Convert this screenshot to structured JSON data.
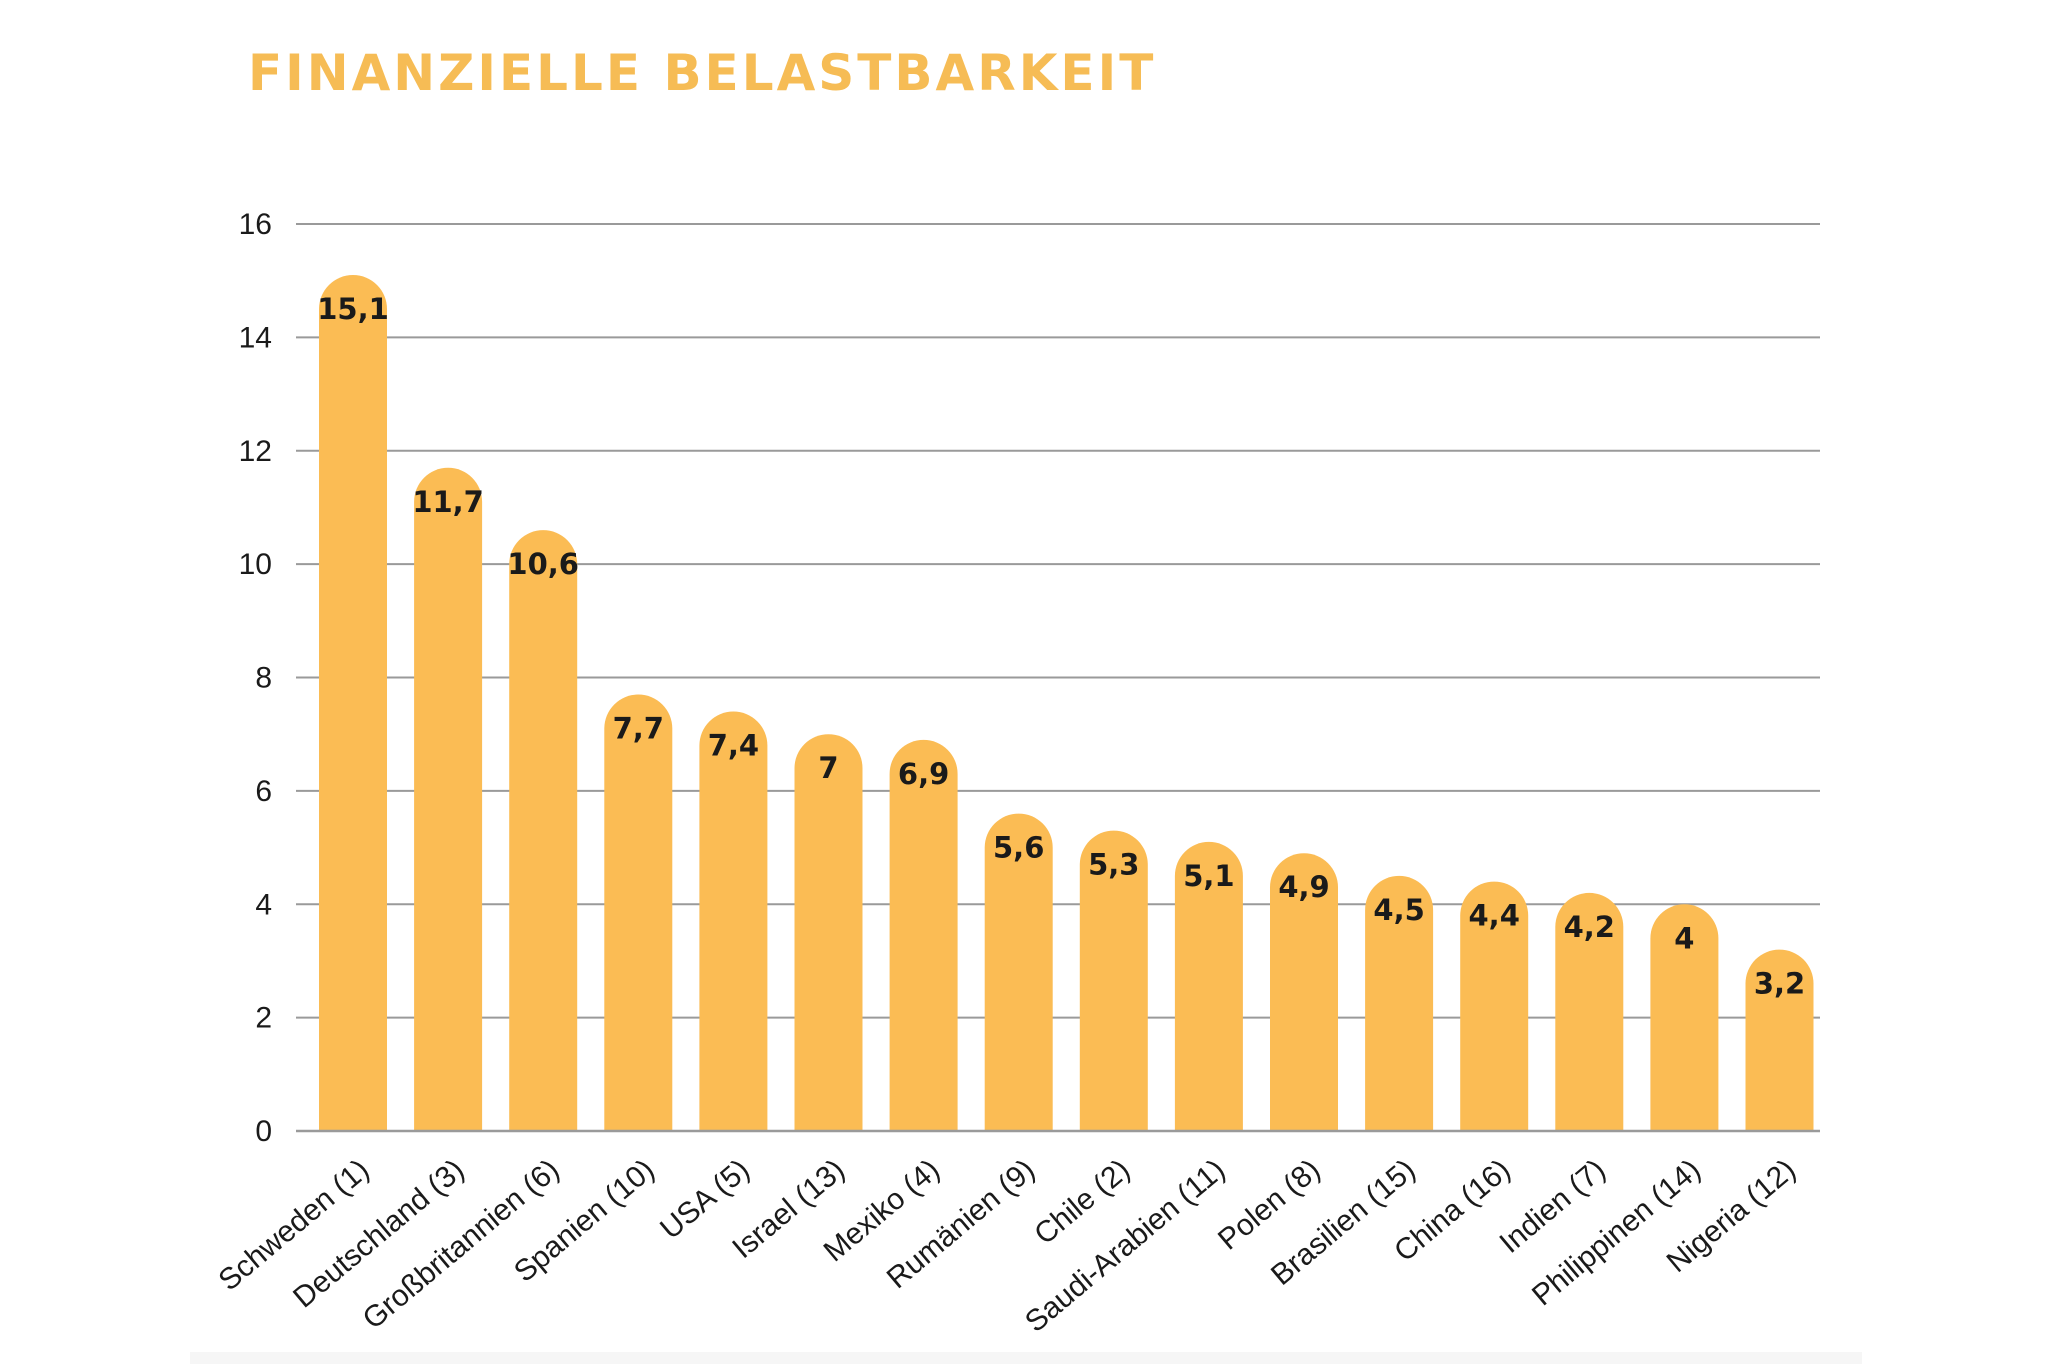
{
  "chart_data": {
    "type": "bar",
    "title": "FINANZIELLE BELASTBARKEIT",
    "xlabel": "",
    "ylabel": "",
    "ylim": [
      0,
      16
    ],
    "yticks": [
      0,
      2,
      4,
      6,
      8,
      10,
      12,
      14,
      16
    ],
    "grid": true,
    "bar_color": "#fbbc54",
    "categories": [
      "Schweden (1)",
      "Deutschland (3)",
      "Großbritannien (6)",
      "Spanien (10)",
      "USA (5)",
      "Israel (13)",
      "Mexiko (4)",
      "Rumänien (9)",
      "Chile (2)",
      "Saudi-Arabien (11)",
      "Polen (8)",
      "Brasilien (15)",
      "China (16)",
      "Indien (7)",
      "Philippinen (14)",
      "Nigeria (12)"
    ],
    "values": [
      15.1,
      11.7,
      10.6,
      7.7,
      7.4,
      7,
      6.9,
      5.6,
      5.3,
      5.1,
      4.9,
      4.5,
      4.4,
      4.2,
      4,
      3.2
    ],
    "value_labels": [
      "15,1",
      "11,7",
      "10,6",
      "7,7",
      "7,4",
      "7",
      "6,9",
      "5,6",
      "5,3",
      "5,1",
      "4,9",
      "4,5",
      "4,4",
      "4,2",
      "4",
      "3,2"
    ]
  }
}
